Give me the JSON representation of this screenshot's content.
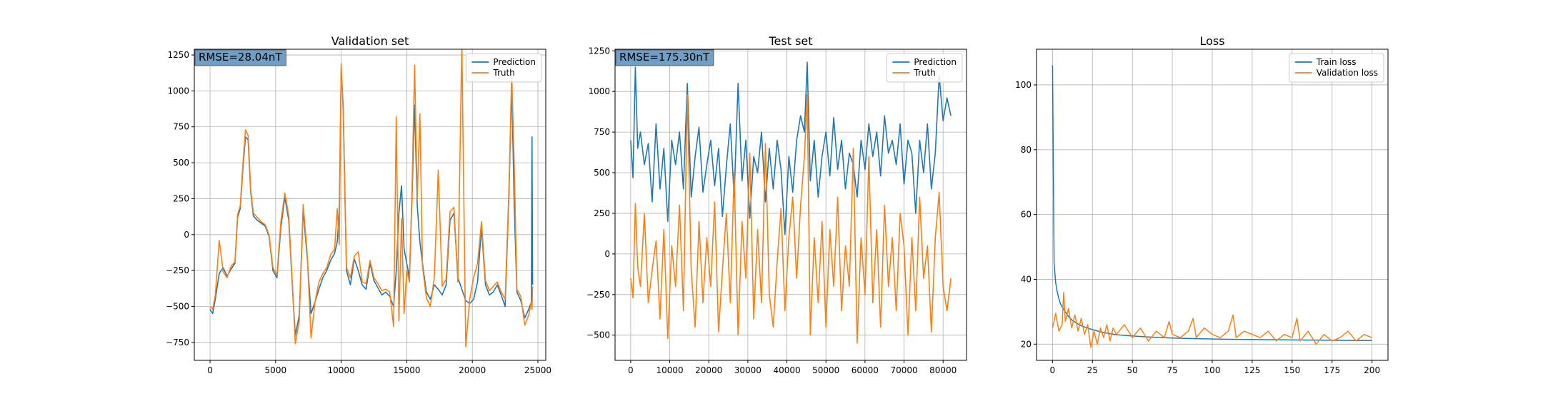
{
  "colors": {
    "prediction": "#1f77b4",
    "truth": "#ff7f0e",
    "grid": "#b0b0b0",
    "rmse_box": "#6f9fc6"
  },
  "chart_data": [
    {
      "type": "line",
      "title": "Validation set",
      "annotation": "RMSE=28.04nT",
      "legend": "top-right",
      "grid": true,
      "xlim": [
        -1200,
        25600
      ],
      "ylim": [
        -875,
        1290
      ],
      "xticks": [
        0,
        5000,
        10000,
        15000,
        20000,
        25000
      ],
      "yticks": [
        -750,
        -500,
        -250,
        0,
        250,
        500,
        750,
        1000,
        1250
      ],
      "series": [
        {
          "name": "Prediction",
          "color": "#1f77b4",
          "width": 1.6,
          "x": [
            0,
            200,
            400,
            700,
            1000,
            1300,
            1600,
            1900,
            2100,
            2300,
            2500,
            2700,
            2900,
            3100,
            3300,
            3600,
            3900,
            4200,
            4500,
            4800,
            5100,
            5400,
            5700,
            6000,
            6300,
            6500,
            6800,
            7100,
            7400,
            7700,
            8000,
            8300,
            8600,
            8900,
            9200,
            9500,
            9700,
            9850,
            10000,
            10150,
            10400,
            10700,
            11000,
            11300,
            11600,
            11900,
            12200,
            12500,
            12800,
            13100,
            13400,
            13700,
            14000,
            14200,
            14400,
            14600,
            14800,
            15000,
            15200,
            15400,
            15600,
            15800,
            16000,
            16200,
            16500,
            16800,
            17100,
            17400,
            17700,
            18000,
            18300,
            18600,
            18900,
            19200,
            19500,
            19800,
            20100,
            20400,
            20700,
            21000,
            21300,
            21600,
            21900,
            22200,
            22500,
            22800,
            23000,
            23200,
            23400,
            23700,
            24000,
            24300,
            24500,
            24550,
            24600
          ],
          "y": [
            -520,
            -550,
            -450,
            -270,
            -230,
            -290,
            -240,
            -200,
            120,
            180,
            450,
            680,
            660,
            300,
            130,
            100,
            80,
            60,
            -10,
            -250,
            -300,
            50,
            260,
            100,
            -400,
            -700,
            -560,
            170,
            -150,
            -550,
            -470,
            -380,
            -300,
            -250,
            -180,
            -130,
            -50,
            150,
            1150,
            900,
            -250,
            -350,
            -170,
            -250,
            -350,
            -380,
            -200,
            -320,
            -370,
            -420,
            -400,
            -430,
            -500,
            -250,
            150,
            340,
            -100,
            -200,
            -300,
            250,
            900,
            200,
            -50,
            -200,
            -400,
            -450,
            -350,
            -380,
            -420,
            -350,
            100,
            150,
            -300,
            -380,
            -460,
            -480,
            -450,
            -330,
            50,
            -350,
            -420,
            -400,
            -350,
            -420,
            -500,
            300,
            1050,
            200,
            -400,
            -460,
            -580,
            -520,
            -470,
            680,
            -350
          ]
        },
        {
          "name": "Truth",
          "color": "#ff7f0e",
          "width": 1.6,
          "x": [
            0,
            200,
            400,
            700,
            1000,
            1300,
            1600,
            1900,
            2100,
            2300,
            2500,
            2700,
            2900,
            3100,
            3300,
            3600,
            3900,
            4200,
            4500,
            4800,
            5100,
            5400,
            5700,
            6000,
            6300,
            6500,
            6800,
            7100,
            7400,
            7700,
            8000,
            8300,
            8600,
            8900,
            9200,
            9500,
            9700,
            9850,
            10000,
            10150,
            10400,
            10700,
            11000,
            11300,
            11600,
            11900,
            12200,
            12500,
            12800,
            13100,
            13400,
            13700,
            14000,
            14200,
            14400,
            14600,
            14800,
            15000,
            15200,
            15400,
            15600,
            15800,
            16000,
            16200,
            16500,
            16800,
            17100,
            17400,
            17700,
            18000,
            18300,
            18600,
            18900,
            19200,
            19500,
            19800,
            20100,
            20400,
            20700,
            21000,
            21300,
            21600,
            21900,
            22200,
            22500,
            22800,
            23000,
            23200,
            23400,
            23700,
            24000,
            24300,
            24500,
            24550,
            24600
          ],
          "y": [
            -500,
            -520,
            -420,
            -40,
            -260,
            -300,
            -220,
            -190,
            140,
            200,
            480,
            730,
            690,
            320,
            150,
            120,
            90,
            70,
            0,
            -230,
            -280,
            90,
            290,
            130,
            -380,
            -760,
            -600,
            210,
            -120,
            -720,
            -470,
            -330,
            -270,
            -230,
            -140,
            -100,
            180,
            -70,
            1190,
            850,
            -230,
            -300,
            -150,
            -120,
            -330,
            -340,
            -180,
            -300,
            -340,
            -390,
            -380,
            -400,
            -640,
            820,
            -600,
            110,
            -550,
            -250,
            -330,
            300,
            1180,
            250,
            840,
            -220,
            -440,
            -500,
            -300,
            450,
            -360,
            -310,
            160,
            190,
            -330,
            1330,
            -780,
            -450,
            -300,
            -200,
            90,
            -320,
            -390,
            -360,
            -330,
            -400,
            -450,
            340,
            1120,
            480,
            -380,
            -430,
            -630,
            -560,
            -470,
            -520,
            -360
          ]
        }
      ]
    },
    {
      "type": "line",
      "title": "Test set",
      "annotation": "RMSE=175.30nT",
      "legend": "top-right",
      "grid": true,
      "xlim": [
        -4000,
        86000
      ],
      "ylim": [
        -655,
        1260
      ],
      "xticks": [
        0,
        10000,
        20000,
        30000,
        40000,
        50000,
        60000,
        70000,
        80000
      ],
      "yticks": [
        -500,
        -250,
        0,
        250,
        500,
        750,
        1000,
        1250
      ],
      "series": [
        {
          "name": "Prediction",
          "color": "#1f77b4",
          "width": 1.6,
          "x": [
            0,
            600,
            1200,
            1800,
            2500,
            3500,
            4500,
            5500,
            6500,
            7500,
            8500,
            9500,
            10500,
            11500,
            12500,
            13500,
            14500,
            15500,
            16500,
            17500,
            18500,
            19500,
            20500,
            21500,
            22500,
            23500,
            24500,
            25500,
            26500,
            27500,
            28500,
            29500,
            30500,
            31500,
            32500,
            33500,
            34500,
            35500,
            36500,
            37500,
            38500,
            39500,
            40500,
            41500,
            42500,
            43500,
            44500,
            45200,
            46000,
            47000,
            48000,
            49000,
            50000,
            51000,
            52000,
            53000,
            54000,
            55000,
            56000,
            57000,
            58000,
            59000,
            60000,
            61000,
            62000,
            63000,
            64000,
            65000,
            66000,
            67000,
            68000,
            69000,
            70000,
            71000,
            72000,
            73000,
            74000,
            75000,
            76000,
            77000,
            78000,
            79000,
            80000,
            81000,
            82000
          ],
          "y": [
            700,
            470,
            1150,
            650,
            750,
            550,
            680,
            320,
            800,
            400,
            650,
            200,
            700,
            550,
            750,
            400,
            1050,
            350,
            600,
            780,
            380,
            550,
            700,
            420,
            650,
            230,
            540,
            800,
            350,
            1050,
            450,
            700,
            220,
            600,
            500,
            750,
            320,
            650,
            400,
            700,
            520,
            120,
            600,
            380,
            700,
            850,
            750,
            1180,
            450,
            700,
            350,
            600,
            750,
            480,
            840,
            520,
            700,
            400,
            620,
            550,
            350,
            700,
            520,
            800,
            600,
            750,
            480,
            850,
            620,
            700,
            550,
            800,
            430,
            700,
            620,
            250,
            700,
            500,
            800,
            400,
            620,
            1100,
            820,
            960,
            850
          ]
        },
        {
          "name": "Truth",
          "color": "#ff7f0e",
          "width": 1.6,
          "x": [
            0,
            600,
            1200,
            1800,
            2500,
            3500,
            4500,
            5500,
            6500,
            7500,
            8500,
            9500,
            10500,
            11500,
            12500,
            13500,
            14500,
            15500,
            16500,
            17500,
            18500,
            19500,
            20500,
            21500,
            22500,
            23500,
            24500,
            25500,
            26500,
            27500,
            28500,
            29500,
            30500,
            31500,
            32500,
            33500,
            34500,
            35500,
            36500,
            37500,
            38500,
            39500,
            40500,
            41500,
            42500,
            43500,
            44500,
            45200,
            46000,
            47000,
            48000,
            49000,
            50000,
            51000,
            52000,
            53000,
            54000,
            55000,
            56000,
            57000,
            58000,
            59000,
            60000,
            61000,
            62000,
            63000,
            64000,
            65000,
            66000,
            67000,
            68000,
            69000,
            70000,
            71000,
            72000,
            73000,
            74000,
            75000,
            76000,
            77000,
            78000,
            79000,
            80000,
            81000,
            82000
          ],
          "y": [
            -150,
            -270,
            310,
            -80,
            -200,
            250,
            -300,
            -100,
            80,
            -400,
            150,
            -520,
            50,
            -200,
            300,
            -350,
            980,
            -100,
            -450,
            200,
            -300,
            100,
            -200,
            320,
            -480,
            -100,
            250,
            -300,
            500,
            -500,
            200,
            -150,
            620,
            -400,
            150,
            -300,
            680,
            -250,
            -450,
            -50,
            280,
            -350,
            100,
            350,
            -150,
            300,
            600,
            980,
            -500,
            100,
            -300,
            200,
            -450,
            150,
            -200,
            350,
            -350,
            50,
            -200,
            650,
            -550,
            100,
            -250,
            600,
            -300,
            150,
            -450,
            300,
            -200,
            100,
            -350,
            250,
            50,
            -500,
            100,
            -350,
            350,
            -150,
            50,
            -480,
            100,
            380,
            -200,
            -350,
            -150
          ]
        }
      ]
    },
    {
      "type": "line",
      "title": "Loss",
      "legend": "top-right",
      "grid": true,
      "xlim": [
        -10,
        210
      ],
      "ylim": [
        15,
        111
      ],
      "xticks": [
        0,
        25,
        50,
        75,
        100,
        125,
        150,
        175,
        200
      ],
      "yticks": [
        20,
        40,
        60,
        80,
        100
      ],
      "series": [
        {
          "name": "Train loss",
          "color": "#1f77b4",
          "width": 1.5,
          "x": [
            0,
            1,
            2,
            3,
            4,
            5,
            6,
            8,
            10,
            12,
            15,
            18,
            21,
            25,
            30,
            35,
            40,
            50,
            60,
            75,
            90,
            110,
            130,
            150,
            170,
            200
          ],
          "y": [
            106,
            45,
            39,
            36,
            34,
            32.5,
            31.5,
            30,
            28.5,
            27.5,
            26.5,
            25.7,
            25.1,
            24.5,
            23.8,
            23.3,
            22.9,
            22.5,
            22.2,
            21.9,
            21.7,
            21.5,
            21.4,
            21.3,
            21.2,
            21.1
          ]
        },
        {
          "name": "Validation loss",
          "color": "#ff7f0e",
          "width": 1.5,
          "x": [
            0,
            2,
            4,
            6,
            7,
            8,
            10,
            12,
            14,
            16,
            18,
            20,
            22,
            24,
            26,
            28,
            30,
            32,
            34,
            36,
            38,
            40,
            45,
            50,
            55,
            60,
            65,
            70,
            73,
            75,
            80,
            85,
            88,
            90,
            95,
            100,
            105,
            110,
            113,
            115,
            120,
            125,
            130,
            135,
            140,
            145,
            150,
            153,
            155,
            160,
            165,
            170,
            175,
            180,
            185,
            190,
            195,
            200
          ],
          "y": [
            25,
            29.5,
            24,
            26,
            36,
            27,
            31,
            25,
            29,
            24,
            28,
            23,
            26,
            19,
            24,
            20,
            25,
            22,
            26,
            21,
            25,
            23,
            26,
            22,
            25,
            21,
            24,
            22,
            27,
            23,
            22,
            24,
            28,
            22,
            25,
            23,
            22,
            24,
            29,
            22,
            24,
            23,
            22,
            24,
            21,
            23,
            22,
            28,
            21,
            24,
            20,
            23,
            21,
            22,
            24,
            21,
            23,
            22
          ]
        }
      ]
    }
  ]
}
